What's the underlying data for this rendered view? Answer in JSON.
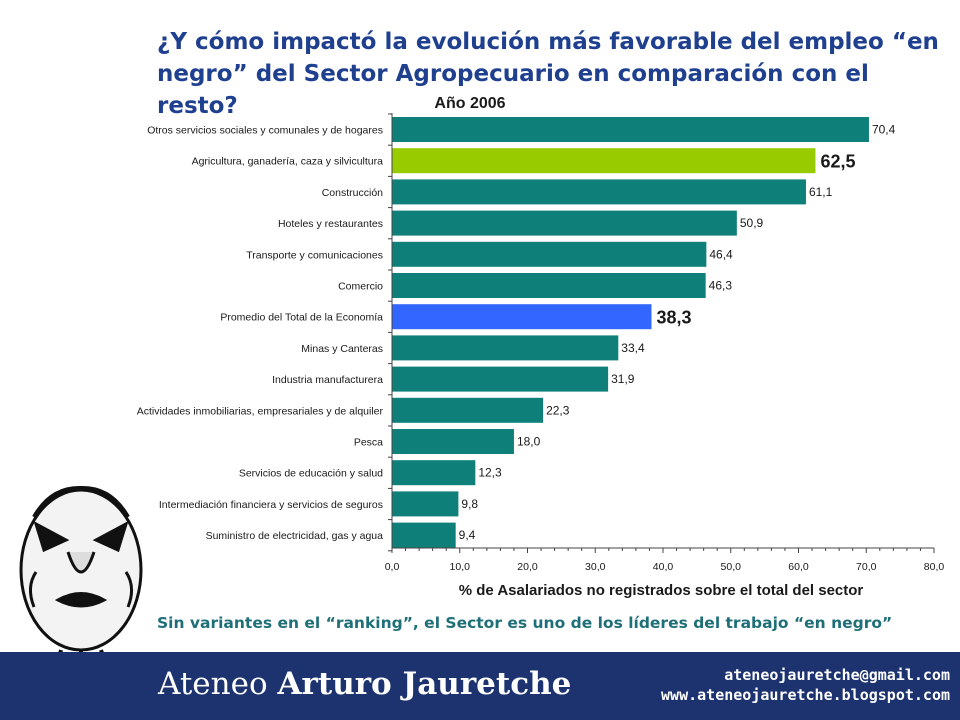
{
  "slide": {
    "title": "¿Y cómo impactó la evolución más favorable del empleo “en negro” del Sector Agropecuario en comparación con el resto?",
    "footnote": "Sin variantes en el “ranking”, el Sector es uno de los líderes del trabajo “en negro”",
    "footer": {
      "brand_regular": "Ateneo",
      "brand_bold": "Arturo Jauretche",
      "email": "ateneojauretche@gmail.com",
      "website": "www.ateneojauretche.blogspot.com"
    }
  },
  "colors": {
    "default_bar": "#0f7f7a",
    "highlight_sector": "#99cc00",
    "average": "#3366ff",
    "title_text": "#1f3f8f",
    "footer_bg": "#1d3370"
  },
  "chart_data": {
    "type": "bar",
    "orientation": "horizontal",
    "title": "Año 2006",
    "xlabel": "% de Asalariados no registrados sobre el total del sector",
    "xlim": [
      0,
      80
    ],
    "ticks": [
      "0,0",
      "10,0",
      "20,0",
      "30,0",
      "40,0",
      "50,0",
      "60,0",
      "70,0",
      "80,0"
    ],
    "grid": false,
    "categories": [
      "Otros servicios sociales y comunales y de hogares",
      "Agricultura, ganadería, caza y silvicultura",
      "Construcción",
      "Hoteles y restaurantes",
      "Transporte y comunicaciones",
      "Comercio",
      "Promedio del Total de la Economía",
      "Minas y Canteras",
      "Industria manufacturera",
      "Actividades inmobiliarias, empresariales y de alquiler",
      "Pesca",
      "Servicios de educación y salud",
      "Intermediación financiera y servicios de seguros",
      "Suministro de electricidad, gas y agua"
    ],
    "values": [
      70.4,
      62.5,
      61.1,
      50.9,
      46.4,
      46.3,
      38.3,
      33.4,
      31.9,
      22.3,
      18.0,
      12.3,
      9.8,
      9.4
    ],
    "value_labels": [
      "70,4",
      "62,5",
      "61,1",
      "50,9",
      "46,4",
      "46,3",
      "38,3",
      "33,4",
      "31,9",
      "22,3",
      "18,0",
      "12,3",
      "9,8",
      "9,4"
    ],
    "highlight": {
      "index": 1,
      "color": "#99cc00",
      "bold_label": true
    },
    "average": {
      "index": 6,
      "color": "#3366ff",
      "bold_label": true
    }
  }
}
